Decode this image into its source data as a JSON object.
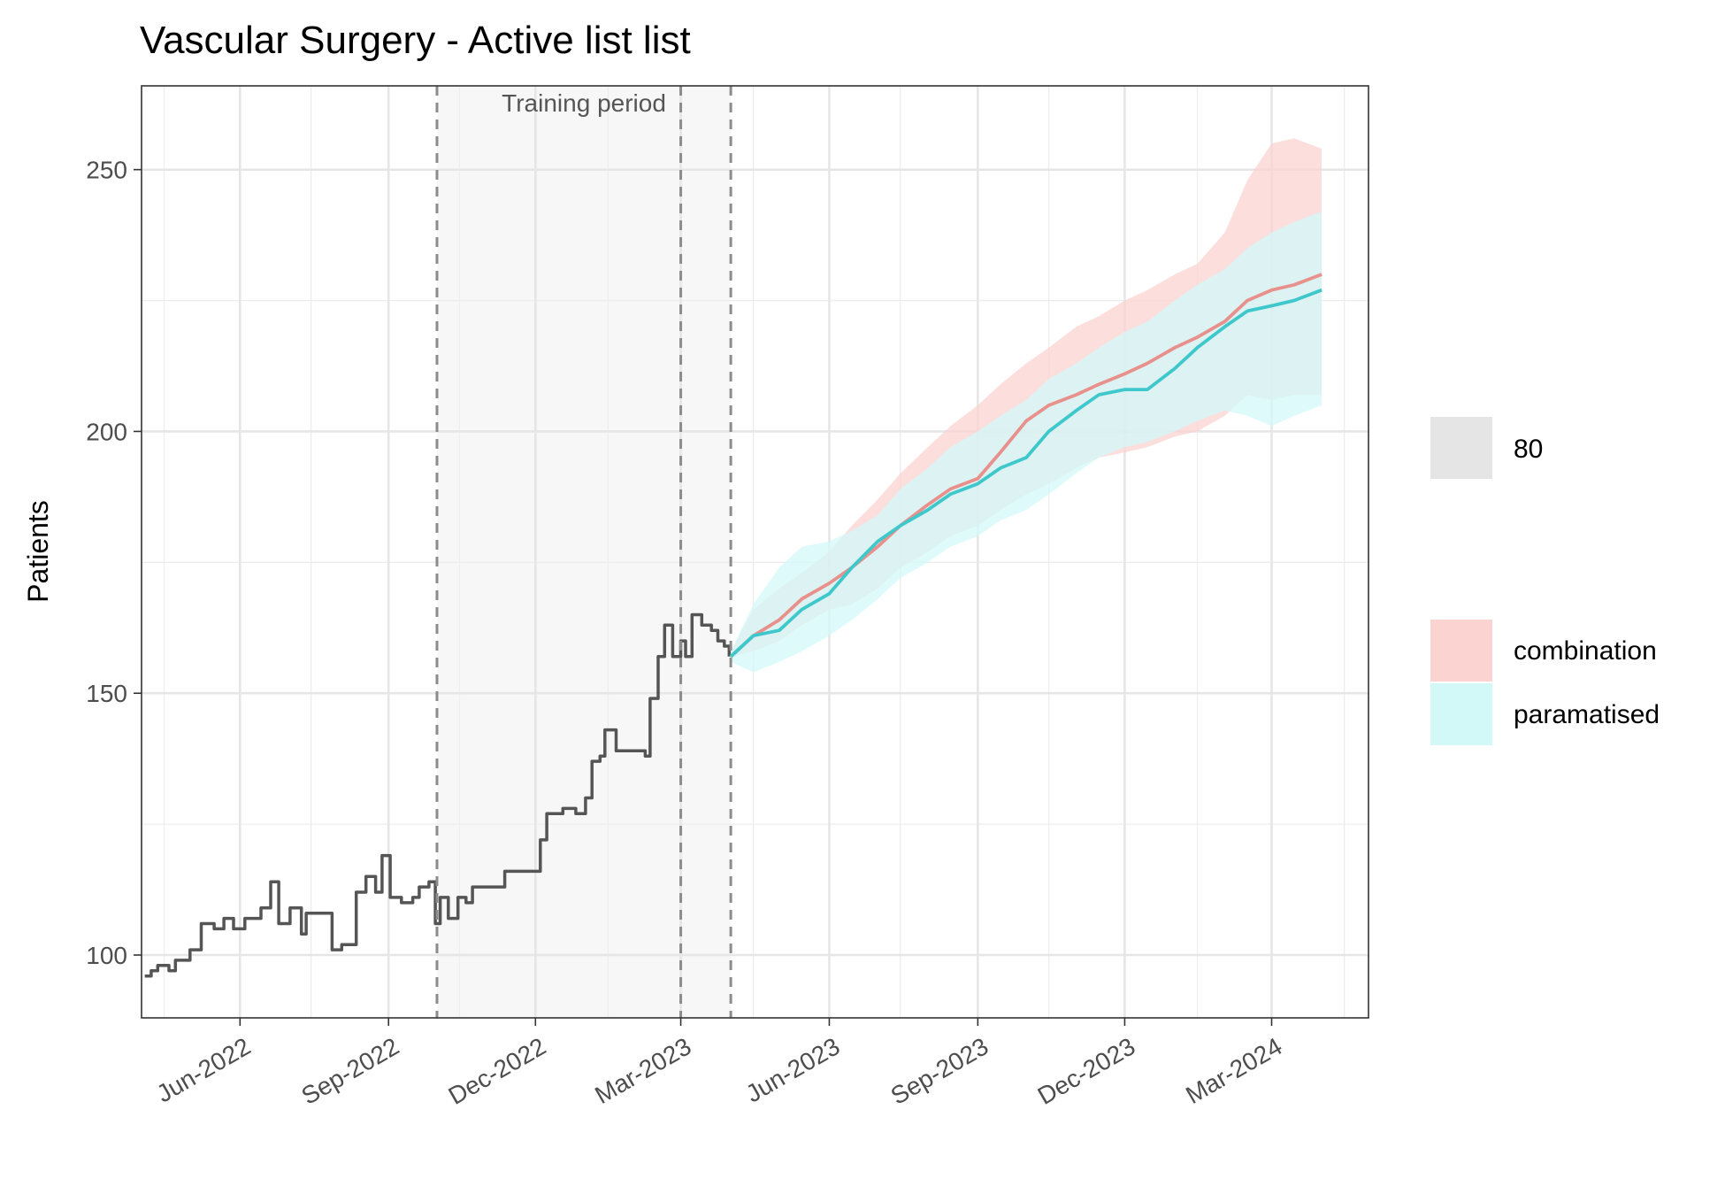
{
  "chart_data": {
    "type": "line",
    "title": "Vascular Surgery - Active list list",
    "ylabel": "Patients",
    "xlabel": "",
    "x_axis": {
      "type": "date",
      "range": [
        "2022-04-01",
        "2024-04-30"
      ],
      "ticks": [
        {
          "date": "2022-06-01",
          "label": "Jun-2022"
        },
        {
          "date": "2022-09-01",
          "label": "Sep-2022"
        },
        {
          "date": "2022-12-01",
          "label": "Dec-2022"
        },
        {
          "date": "2023-03-01",
          "label": "Mar-2023"
        },
        {
          "date": "2023-06-01",
          "label": "Jun-2023"
        },
        {
          "date": "2023-09-01",
          "label": "Sep-2023"
        },
        {
          "date": "2023-12-01",
          "label": "Dec-2023"
        },
        {
          "date": "2024-03-01",
          "label": "Mar-2024"
        }
      ],
      "minor_ticks": [
        "2022-04-15",
        "2022-07-15",
        "2022-10-15",
        "2023-01-15",
        "2023-04-15",
        "2023-07-15",
        "2023-10-15",
        "2024-01-15",
        "2024-04-15"
      ],
      "tick_label_rotation": -30
    },
    "y_axis": {
      "range": [
        88,
        266
      ],
      "ticks": [
        100,
        150,
        200,
        250
      ],
      "minor_ticks": [
        125,
        175,
        225
      ]
    },
    "grid": true,
    "training_period": {
      "label": "Training period",
      "start": "2022-10-01",
      "end": "2023-04-01",
      "extra_line": "2023-03-01"
    },
    "observed": {
      "color": "#555555",
      "points": [
        [
          "2022-04-03",
          96
        ],
        [
          "2022-04-07",
          97
        ],
        [
          "2022-04-11",
          98
        ],
        [
          "2022-04-18",
          97
        ],
        [
          "2022-04-22",
          99
        ],
        [
          "2022-05-01",
          101
        ],
        [
          "2022-05-08",
          106
        ],
        [
          "2022-05-16",
          105
        ],
        [
          "2022-05-22",
          107
        ],
        [
          "2022-05-28",
          105
        ],
        [
          "2022-06-04",
          107
        ],
        [
          "2022-06-14",
          109
        ],
        [
          "2022-06-20",
          114
        ],
        [
          "2022-06-25",
          106
        ],
        [
          "2022-07-02",
          109
        ],
        [
          "2022-07-09",
          104
        ],
        [
          "2022-07-12",
          108
        ],
        [
          "2022-07-20",
          108
        ],
        [
          "2022-07-28",
          101
        ],
        [
          "2022-08-03",
          102
        ],
        [
          "2022-08-12",
          112
        ],
        [
          "2022-08-18",
          115
        ],
        [
          "2022-08-24",
          112
        ],
        [
          "2022-08-28",
          119
        ],
        [
          "2022-09-02",
          111
        ],
        [
          "2022-09-09",
          110
        ],
        [
          "2022-09-16",
          111
        ],
        [
          "2022-09-20",
          113
        ],
        [
          "2022-09-26",
          114
        ],
        [
          "2022-09-30",
          106
        ],
        [
          "2022-10-03",
          111
        ],
        [
          "2022-10-08",
          107
        ],
        [
          "2022-10-14",
          111
        ],
        [
          "2022-10-19",
          110
        ],
        [
          "2022-10-23",
          113
        ],
        [
          "2022-11-10",
          113
        ],
        [
          "2022-11-12",
          116
        ],
        [
          "2022-12-01",
          116
        ],
        [
          "2022-12-04",
          122
        ],
        [
          "2022-12-08",
          127
        ],
        [
          "2022-12-18",
          128
        ],
        [
          "2022-12-26",
          127
        ],
        [
          "2023-01-01",
          130
        ],
        [
          "2023-01-05",
          137
        ],
        [
          "2023-01-10",
          138
        ],
        [
          "2023-01-13",
          143
        ],
        [
          "2023-01-20",
          139
        ],
        [
          "2023-02-07",
          138
        ],
        [
          "2023-02-10",
          149
        ],
        [
          "2023-02-15",
          157
        ],
        [
          "2023-02-19",
          163
        ],
        [
          "2023-02-24",
          157
        ],
        [
          "2023-03-01",
          160
        ],
        [
          "2023-03-04",
          157
        ],
        [
          "2023-03-08",
          165
        ],
        [
          "2023-03-14",
          163
        ],
        [
          "2023-03-20",
          162
        ],
        [
          "2023-03-24",
          160
        ],
        [
          "2023-03-28",
          159
        ],
        [
          "2023-03-31",
          157
        ]
      ]
    },
    "forecast_start": "2023-04-01",
    "forecast_end": "2024-04-15",
    "interval_label": "80",
    "series": [
      {
        "name": "combination",
        "color": "#e8918c",
        "fill": "#fbd3d1",
        "points": [
          [
            "2023-04-01",
            157
          ],
          [
            "2023-04-15",
            161
          ],
          [
            "2023-05-01",
            164
          ],
          [
            "2023-05-15",
            168
          ],
          [
            "2023-06-01",
            171
          ],
          [
            "2023-06-15",
            174
          ],
          [
            "2023-07-01",
            178
          ],
          [
            "2023-07-15",
            182
          ],
          [
            "2023-08-01",
            186
          ],
          [
            "2023-08-15",
            189
          ],
          [
            "2023-09-01",
            191
          ],
          [
            "2023-09-15",
            196
          ],
          [
            "2023-10-01",
            202
          ],
          [
            "2023-10-15",
            205
          ],
          [
            "2023-11-01",
            207
          ],
          [
            "2023-11-15",
            209
          ],
          [
            "2023-12-01",
            211
          ],
          [
            "2023-12-15",
            213
          ],
          [
            "2024-01-01",
            216
          ],
          [
            "2024-01-15",
            218
          ],
          [
            "2024-02-01",
            221
          ],
          [
            "2024-02-15",
            225
          ],
          [
            "2024-03-01",
            227
          ],
          [
            "2024-03-15",
            228
          ],
          [
            "2024-04-01",
            230
          ]
        ],
        "lower": [
          [
            "2023-04-01",
            157
          ],
          [
            "2023-04-15",
            158
          ],
          [
            "2023-05-01",
            160
          ],
          [
            "2023-05-15",
            163
          ],
          [
            "2023-06-01",
            166
          ],
          [
            "2023-06-15",
            167
          ],
          [
            "2023-07-01",
            170
          ],
          [
            "2023-07-15",
            174
          ],
          [
            "2023-08-01",
            177
          ],
          [
            "2023-08-15",
            180
          ],
          [
            "2023-09-01",
            182
          ],
          [
            "2023-09-15",
            185
          ],
          [
            "2023-10-01",
            188
          ],
          [
            "2023-10-15",
            190
          ],
          [
            "2023-11-01",
            193
          ],
          [
            "2023-11-15",
            195
          ],
          [
            "2023-12-01",
            196
          ],
          [
            "2023-12-15",
            197
          ],
          [
            "2024-01-01",
            199
          ],
          [
            "2024-01-15",
            200
          ],
          [
            "2024-02-01",
            203
          ],
          [
            "2024-02-15",
            207
          ],
          [
            "2024-03-01",
            206
          ],
          [
            "2024-03-15",
            207
          ],
          [
            "2024-04-01",
            207
          ]
        ],
        "upper": [
          [
            "2023-04-01",
            158
          ],
          [
            "2023-04-15",
            166
          ],
          [
            "2023-05-01",
            170
          ],
          [
            "2023-05-15",
            173
          ],
          [
            "2023-06-01",
            177
          ],
          [
            "2023-06-15",
            182
          ],
          [
            "2023-07-01",
            187
          ],
          [
            "2023-07-15",
            192
          ],
          [
            "2023-08-01",
            197
          ],
          [
            "2023-08-15",
            201
          ],
          [
            "2023-09-01",
            205
          ],
          [
            "2023-09-15",
            209
          ],
          [
            "2023-10-01",
            213
          ],
          [
            "2023-10-15",
            216
          ],
          [
            "2023-11-01",
            220
          ],
          [
            "2023-11-15",
            222
          ],
          [
            "2023-12-01",
            225
          ],
          [
            "2023-12-15",
            227
          ],
          [
            "2024-01-01",
            230
          ],
          [
            "2024-01-15",
            232
          ],
          [
            "2024-02-01",
            238
          ],
          [
            "2024-02-15",
            248
          ],
          [
            "2024-03-01",
            255
          ],
          [
            "2024-03-15",
            256
          ],
          [
            "2024-04-01",
            254
          ]
        ]
      },
      {
        "name": "paramatised",
        "color": "#3fc8cc",
        "fill": "#d3f8f8",
        "points": [
          [
            "2023-04-01",
            157
          ],
          [
            "2023-04-15",
            161
          ],
          [
            "2023-05-01",
            162
          ],
          [
            "2023-05-15",
            166
          ],
          [
            "2023-06-01",
            169
          ],
          [
            "2023-06-15",
            174
          ],
          [
            "2023-07-01",
            179
          ],
          [
            "2023-07-15",
            182
          ],
          [
            "2023-08-01",
            185
          ],
          [
            "2023-08-15",
            188
          ],
          [
            "2023-09-01",
            190
          ],
          [
            "2023-09-15",
            193
          ],
          [
            "2023-10-01",
            195
          ],
          [
            "2023-10-15",
            200
          ],
          [
            "2023-11-01",
            204
          ],
          [
            "2023-11-15",
            207
          ],
          [
            "2023-12-01",
            208
          ],
          [
            "2023-12-15",
            208
          ],
          [
            "2024-01-01",
            212
          ],
          [
            "2024-01-15",
            216
          ],
          [
            "2024-02-01",
            220
          ],
          [
            "2024-02-15",
            223
          ],
          [
            "2024-03-01",
            224
          ],
          [
            "2024-03-15",
            225
          ],
          [
            "2024-04-01",
            227
          ]
        ],
        "lower": [
          [
            "2023-04-01",
            156
          ],
          [
            "2023-04-15",
            154
          ],
          [
            "2023-05-01",
            156
          ],
          [
            "2023-05-15",
            158
          ],
          [
            "2023-06-01",
            161
          ],
          [
            "2023-06-15",
            164
          ],
          [
            "2023-07-01",
            168
          ],
          [
            "2023-07-15",
            172
          ],
          [
            "2023-08-01",
            175
          ],
          [
            "2023-08-15",
            178
          ],
          [
            "2023-09-01",
            180
          ],
          [
            "2023-09-15",
            183
          ],
          [
            "2023-10-01",
            185
          ],
          [
            "2023-10-15",
            188
          ],
          [
            "2023-11-01",
            192
          ],
          [
            "2023-11-15",
            195
          ],
          [
            "2023-12-01",
            197
          ],
          [
            "2023-12-15",
            198
          ],
          [
            "2024-01-01",
            200
          ],
          [
            "2024-01-15",
            202
          ],
          [
            "2024-02-01",
            204
          ],
          [
            "2024-02-15",
            203
          ],
          [
            "2024-03-01",
            201
          ],
          [
            "2024-03-15",
            203
          ],
          [
            "2024-04-01",
            205
          ]
        ],
        "upper": [
          [
            "2023-04-01",
            158
          ],
          [
            "2023-04-15",
            167
          ],
          [
            "2023-05-01",
            174
          ],
          [
            "2023-05-15",
            178
          ],
          [
            "2023-06-01",
            179
          ],
          [
            "2023-06-15",
            181
          ],
          [
            "2023-07-01",
            184
          ],
          [
            "2023-07-15",
            189
          ],
          [
            "2023-08-01",
            193
          ],
          [
            "2023-08-15",
            197
          ],
          [
            "2023-09-01",
            200
          ],
          [
            "2023-09-15",
            203
          ],
          [
            "2023-10-01",
            206
          ],
          [
            "2023-10-15",
            210
          ],
          [
            "2023-11-01",
            213
          ],
          [
            "2023-11-15",
            216
          ],
          [
            "2023-12-01",
            219
          ],
          [
            "2023-12-15",
            221
          ],
          [
            "2024-01-01",
            225
          ],
          [
            "2024-01-15",
            228
          ],
          [
            "2024-02-01",
            231
          ],
          [
            "2024-02-15",
            235
          ],
          [
            "2024-03-01",
            238
          ],
          [
            "2024-03-15",
            240
          ],
          [
            "2024-04-01",
            242
          ]
        ]
      }
    ],
    "legend": {
      "position": "right",
      "groups": [
        {
          "entries": [
            {
              "label": "80",
              "color": "#e5e5e5"
            }
          ]
        },
        {
          "entries": [
            {
              "label": "combination",
              "color": "#fbd3d1"
            },
            {
              "label": "paramatised",
              "color": "#d3f8f8"
            }
          ]
        }
      ]
    }
  }
}
